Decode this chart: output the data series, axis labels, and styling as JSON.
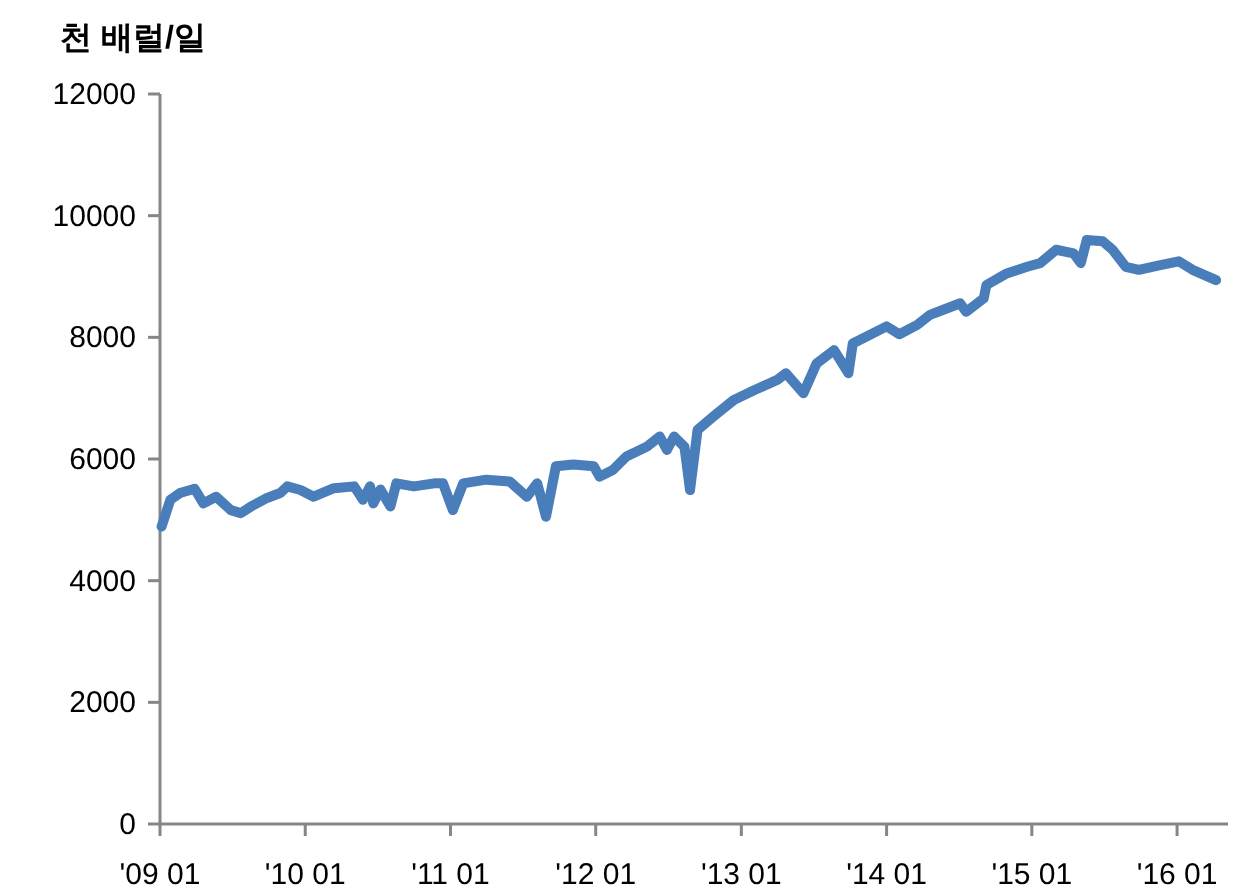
{
  "chart_data": {
    "type": "line",
    "ylabel": "천 배럴/일",
    "x": [
      "2009-01-05",
      "2009-01-27",
      "2009-02-20",
      "2009-03-29",
      "2009-04-20",
      "2009-05-22",
      "2009-06-28",
      "2009-07-23",
      "2009-08-18",
      "2009-09-27",
      "2009-10-30",
      "2009-11-17",
      "2009-12-20",
      "2010-01-22",
      "2010-03-14",
      "2010-05-04",
      "2010-05-26",
      "2010-06-13",
      "2010-06-21",
      "2010-07-09",
      "2010-08-03",
      "2010-08-18",
      "2010-10-01",
      "2010-11-21",
      "2010-12-13",
      "2011-01-07",
      "2011-02-02",
      "2011-04-01",
      "2011-05-30",
      "2011-07-12",
      "2011-08-07",
      "2011-08-29",
      "2011-09-23",
      "2011-11-06",
      "2011-12-27",
      "2012-01-11",
      "2012-02-13",
      "2012-03-18",
      "2012-05-08",
      "2012-06-10",
      "2012-06-28",
      "2012-07-16",
      "2012-08-11",
      "2012-08-25",
      "2012-09-13",
      "2012-10-23",
      "2012-12-13",
      "2013-02-02",
      "2013-04-01",
      "2013-04-23",
      "2013-06-06",
      "2013-07-09",
      "2013-08-22",
      "2013-09-27",
      "2013-10-08",
      "2014-01-01",
      "2014-02-02",
      "2014-03-18",
      "2014-04-20",
      "2014-05-22",
      "2014-07-05",
      "2014-07-20",
      "2014-09-02",
      "2014-09-09",
      "2014-10-30",
      "2014-12-20",
      "2015-01-22",
      "2015-03-03",
      "2015-04-16",
      "2015-05-04",
      "2015-05-19",
      "2015-06-28",
      "2015-07-23",
      "2015-08-25",
      "2015-09-27",
      "2015-11-14",
      "2016-01-05",
      "2016-02-09",
      "2016-04-08"
    ],
    "series": [
      {
        "color": "#4a7ebb",
        "values": [
          4890,
          5330,
          5440,
          5510,
          5270,
          5380,
          5160,
          5110,
          5220,
          5360,
          5440,
          5550,
          5490,
          5380,
          5520,
          5550,
          5330,
          5550,
          5270,
          5500,
          5220,
          5600,
          5550,
          5600,
          5600,
          5160,
          5600,
          5660,
          5630,
          5380,
          5600,
          5050,
          5880,
          5910,
          5880,
          5710,
          5820,
          6040,
          6200,
          6370,
          6150,
          6370,
          6200,
          5490,
          6480,
          6700,
          6970,
          7130,
          7300,
          7410,
          7080,
          7570,
          7790,
          7410,
          7900,
          8180,
          8050,
          8200,
          8370,
          8450,
          8560,
          8420,
          8640,
          8860,
          9050,
          9160,
          9220,
          9440,
          9380,
          9220,
          9600,
          9580,
          9440,
          9160,
          9110,
          9180,
          9250,
          9110,
          8940
        ]
      }
    ],
    "xlim": [
      "2009-01-01",
      "2016-05-08"
    ],
    "xticks": [
      {
        "value": "2009-01-01",
        "label": "'09 01"
      },
      {
        "value": "2010-01-01",
        "label": "'10 01"
      },
      {
        "value": "2011-01-01",
        "label": "'11 01"
      },
      {
        "value": "2012-01-01",
        "label": "'12 01"
      },
      {
        "value": "2013-01-01",
        "label": "'13 01"
      },
      {
        "value": "2014-01-01",
        "label": "'14 01"
      },
      {
        "value": "2015-01-01",
        "label": "'15 01"
      },
      {
        "value": "2016-01-01",
        "label": "'16 01"
      }
    ],
    "ylim": [
      0,
      12000
    ],
    "yticks": [
      0,
      2000,
      4000,
      6000,
      8000,
      10000,
      12000
    ],
    "marker": "none",
    "line_style": "solid"
  }
}
